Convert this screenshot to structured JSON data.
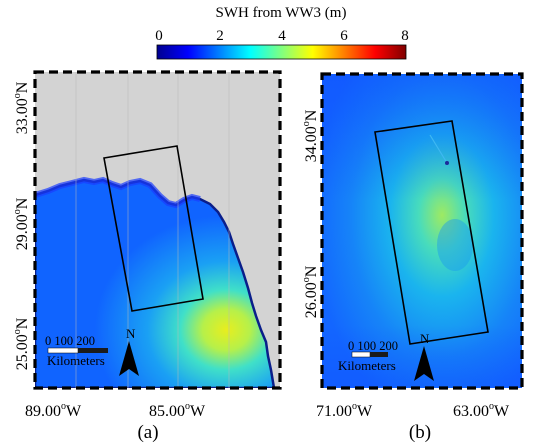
{
  "colorbar": {
    "title": "SWH from WW3 (m)",
    "ticks": [
      "0",
      "2",
      "4",
      "6",
      "8"
    ],
    "colors": [
      "#00008f",
      "#0000ff",
      "#0080ff",
      "#00ffff",
      "#80ff80",
      "#ffff00",
      "#ff8000",
      "#ff0000",
      "#800000"
    ]
  },
  "panel_a": {
    "label": "(a)",
    "y_ticks": [
      "33.00",
      "29.00",
      "25.00"
    ],
    "y_ticks_suffix": "N",
    "x_ticks": [
      "89.00",
      "85.00"
    ],
    "x_ticks_suffix": "W",
    "scalebar": {
      "values": "0  100  200",
      "unit": "Kilometers"
    },
    "north_label": "N",
    "land_color": "#d3d3d3"
  },
  "panel_b": {
    "label": "(b)",
    "y_ticks": [
      "34.00",
      "26.00"
    ],
    "y_ticks_suffix": "N",
    "x_ticks": [
      "71.00",
      "63.00"
    ],
    "x_ticks_suffix": "W",
    "scalebar": {
      "values": "0 100 200",
      "unit": "Kilometers"
    },
    "north_label": "N"
  },
  "degree_symbol": "o",
  "colors": {
    "frame": "#000000",
    "ocean_low": "#1060ff",
    "ocean_high": "#f0f020"
  }
}
